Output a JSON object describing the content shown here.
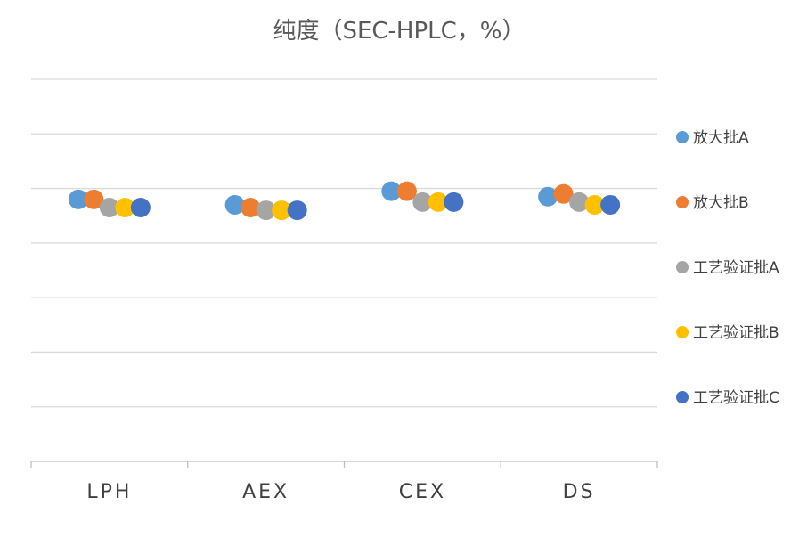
{
  "chart_data": {
    "type": "scatter",
    "title": "纯度（SEC-HPLC，%）",
    "categories": [
      "LPH",
      "AEX",
      "CEX",
      "DS"
    ],
    "ylim": [
      0,
      7
    ],
    "yticks": [
      0,
      1,
      2,
      3,
      4,
      5,
      6,
      7
    ],
    "y_tick_labels_shown": false,
    "grid": true,
    "legend_position": "right",
    "series": [
      {
        "name": "放大批A",
        "color": "#5B9BD5",
        "values": [
          4.8,
          4.7,
          4.95,
          4.85
        ]
      },
      {
        "name": "放大批B",
        "color": "#ED7D31",
        "values": [
          4.8,
          4.65,
          4.95,
          4.9
        ]
      },
      {
        "name": "工艺验证批A",
        "color": "#A5A5A5",
        "values": [
          4.65,
          4.6,
          4.75,
          4.75
        ]
      },
      {
        "name": "工艺验证批B",
        "color": "#FFC000",
        "values": [
          4.65,
          4.6,
          4.75,
          4.7
        ]
      },
      {
        "name": "工艺验证批C",
        "color": "#4472C4",
        "values": [
          4.65,
          4.6,
          4.75,
          4.7
        ]
      }
    ]
  }
}
